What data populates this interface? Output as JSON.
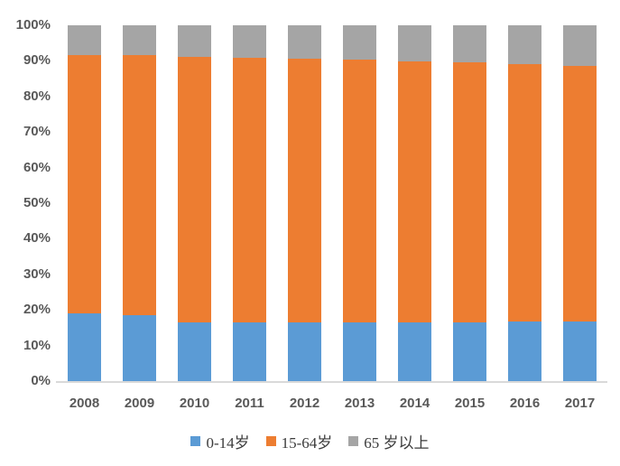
{
  "chart_data": {
    "type": "bar",
    "stacked": true,
    "percent": true,
    "title": "",
    "xlabel": "",
    "ylabel": "",
    "categories": [
      "2008",
      "2009",
      "2010",
      "2011",
      "2012",
      "2013",
      "2014",
      "2015",
      "2016",
      "2017"
    ],
    "series": [
      {
        "name": "0-14岁",
        "color": "#5B9BD5",
        "values": [
          19.0,
          18.5,
          16.6,
          16.5,
          16.5,
          16.4,
          16.5,
          16.5,
          16.7,
          16.8
        ]
      },
      {
        "name": "15-64岁",
        "color": "#ED7D31",
        "values": [
          72.7,
          73.0,
          74.5,
          74.4,
          74.1,
          73.9,
          73.4,
          73.0,
          72.5,
          71.8
        ]
      },
      {
        "name": "65 岁以上",
        "color": "#A5A5A5",
        "values": [
          8.3,
          8.5,
          8.9,
          9.1,
          9.4,
          9.7,
          10.1,
          10.5,
          10.8,
          11.4
        ]
      }
    ],
    "y_axis": {
      "min": 0,
      "max": 100,
      "step": 10,
      "tick_labels": [
        "0%",
        "10%",
        "20%",
        "30%",
        "40%",
        "50%",
        "60%",
        "70%",
        "80%",
        "90%",
        "100%"
      ]
    },
    "legend_position": "bottom",
    "grid": false
  },
  "colors": {
    "background": "#FFFFFF",
    "axis_text": "#595959",
    "axis_line": "#D9D9D9",
    "legend_text": "#3B3B3B"
  }
}
